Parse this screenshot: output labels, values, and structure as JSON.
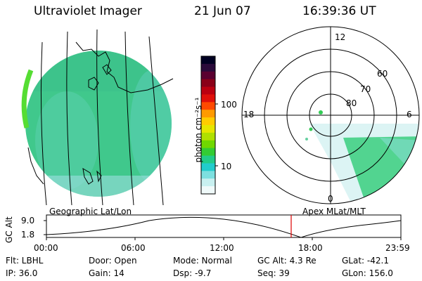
{
  "header": {
    "instrument": "Ultraviolet Imager",
    "date": "21 Jun 07",
    "time": "16:39:36 UT"
  },
  "colorbar": {
    "unit_label": "photon cm⁻²s⁻¹",
    "ticks": [
      "100",
      "10"
    ],
    "colors": [
      "#000022",
      "#2a0a3a",
      "#5a0030",
      "#8a0018",
      "#bb0010",
      "#e0100a",
      "#ff4a00",
      "#ff9a00",
      "#ffcc00",
      "#e6e600",
      "#b0e000",
      "#70d800",
      "#33cc33",
      "#22cc88",
      "#22cccc",
      "#7de0e0",
      "#c8f0f0",
      "#f0fafa"
    ]
  },
  "polar_plot": {
    "labels": [
      "12",
      "60",
      "70",
      "80",
      "18",
      "6",
      "0"
    ]
  },
  "captions": {
    "left": "Geographic Lat/Lon",
    "right": "Apex MLat/MLT"
  },
  "orbit": {
    "y_axis_label": "GC Alt",
    "y_ticks": [
      "9.0",
      "1.8"
    ],
    "x_ticks": [
      "00:00",
      "06:00",
      "12:00",
      "18:00",
      "23:59"
    ],
    "current_time_color": "#dd0000"
  },
  "info": {
    "filter": "Flt: LBHL",
    "ip": "IP: 36.0",
    "door": "Door: Open",
    "gain": "Gain: 14",
    "mode": "Mode: Normal",
    "dsp": "Dsp:    -9.7",
    "gc_alt": "GC Alt: 4.3 Re",
    "seq": "Seq: 39",
    "glat": "GLat: -42.1",
    "glon": "GLon: 156.0"
  }
}
